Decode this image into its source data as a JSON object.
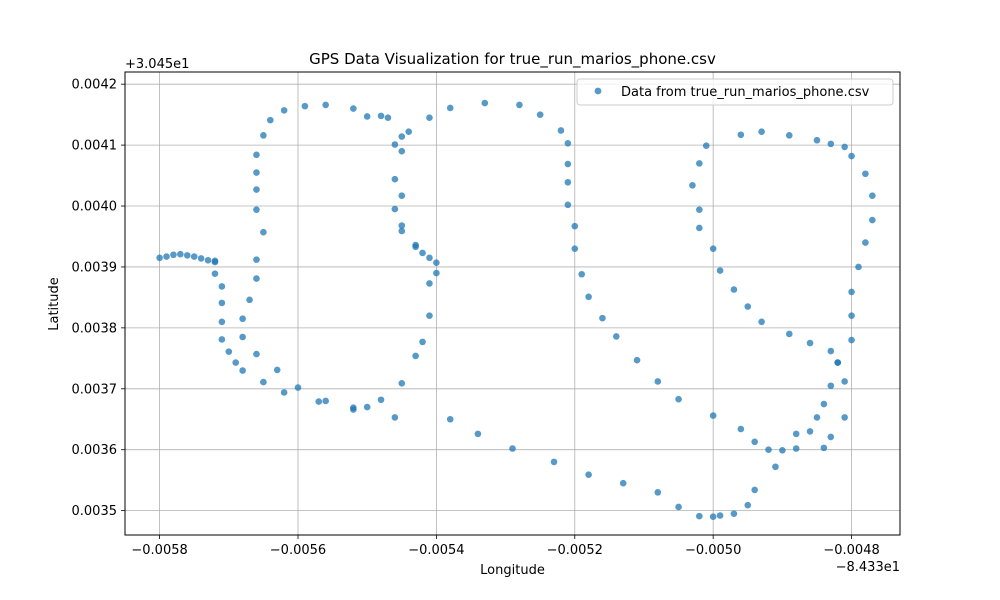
{
  "chart_data": {
    "type": "scatter",
    "title": "GPS Data Visualization for true_run_marios_phone.csv",
    "xlabel": "Longitude",
    "ylabel": "Latitude",
    "x_offset_label": "−8.433e1",
    "y_offset_label": "+3.045e1",
    "xlim": [
      -0.00585,
      -0.00473
    ],
    "ylim": [
      0.00346,
      0.00422
    ],
    "x_ticks": [
      {
        "value": -0.0058,
        "label": "−0.0058"
      },
      {
        "value": -0.0056,
        "label": "−0.0056"
      },
      {
        "value": -0.0054,
        "label": "−0.0054"
      },
      {
        "value": -0.0052,
        "label": "−0.0052"
      },
      {
        "value": -0.005,
        "label": "−0.0050"
      },
      {
        "value": -0.0048,
        "label": "−0.0048"
      }
    ],
    "y_ticks": [
      {
        "value": 0.0035,
        "label": "0.0035"
      },
      {
        "value": 0.0036,
        "label": "0.0036"
      },
      {
        "value": 0.0037,
        "label": "0.0037"
      },
      {
        "value": 0.0038,
        "label": "0.0038"
      },
      {
        "value": 0.0039,
        "label": "0.0039"
      },
      {
        "value": 0.004,
        "label": "0.0040"
      },
      {
        "value": 0.0041,
        "label": "0.0041"
      },
      {
        "value": 0.0042,
        "label": "0.0042"
      }
    ],
    "grid": true,
    "legend_position": "top-right",
    "series": [
      {
        "name": "Data from true_run_marios_phone.csv",
        "color": "#1f77b4",
        "points": [
          [
            -0.0058,
            0.003915
          ],
          [
            -0.00579,
            0.003917
          ],
          [
            -0.00578,
            0.00392
          ],
          [
            -0.00577,
            0.003921
          ],
          [
            -0.00576,
            0.003919
          ],
          [
            -0.00575,
            0.003917
          ],
          [
            -0.00574,
            0.003914
          ],
          [
            -0.00573,
            0.003911
          ],
          [
            -0.00572,
            0.00391
          ],
          [
            -0.00572,
            0.003908
          ],
          [
            -0.00572,
            0.003889
          ],
          [
            -0.00571,
            0.003868
          ],
          [
            -0.00571,
            0.003841
          ],
          [
            -0.00571,
            0.00381
          ],
          [
            -0.00571,
            0.003781
          ],
          [
            -0.0057,
            0.003761
          ],
          [
            -0.00569,
            0.003743
          ],
          [
            -0.00568,
            0.00373
          ],
          [
            -0.00568,
            0.003785
          ],
          [
            -0.00568,
            0.003815
          ],
          [
            -0.00567,
            0.003846
          ],
          [
            -0.00566,
            0.003881
          ],
          [
            -0.00566,
            0.003912
          ],
          [
            -0.00565,
            0.003957
          ],
          [
            -0.00566,
            0.003994
          ],
          [
            -0.00566,
            0.004027
          ],
          [
            -0.00566,
            0.004055
          ],
          [
            -0.00566,
            0.004084
          ],
          [
            -0.00565,
            0.004116
          ],
          [
            -0.00564,
            0.004141
          ],
          [
            -0.00562,
            0.004157
          ],
          [
            -0.00559,
            0.004164
          ],
          [
            -0.00556,
            0.004166
          ],
          [
            -0.00552,
            0.00416
          ],
          [
            -0.0055,
            0.004147
          ],
          [
            -0.00548,
            0.004148
          ],
          [
            -0.00547,
            0.004145
          ],
          [
            -0.00545,
            0.004114
          ],
          [
            -0.00544,
            0.004122
          ],
          [
            -0.00541,
            0.004145
          ],
          [
            -0.00546,
            0.004101
          ],
          [
            -0.00545,
            0.00409
          ],
          [
            -0.00546,
            0.004044
          ],
          [
            -0.00545,
            0.004017
          ],
          [
            -0.00546,
            0.003995
          ],
          [
            -0.00545,
            0.003968
          ],
          [
            -0.00545,
            0.003959
          ],
          [
            -0.00543,
            0.003936
          ],
          [
            -0.00543,
            0.003933
          ],
          [
            -0.00542,
            0.003923
          ],
          [
            -0.00541,
            0.003915
          ],
          [
            -0.0054,
            0.003907
          ],
          [
            -0.0054,
            0.00389
          ],
          [
            -0.00541,
            0.003873
          ],
          [
            -0.00541,
            0.00382
          ],
          [
            -0.00542,
            0.003777
          ],
          [
            -0.00543,
            0.003754
          ],
          [
            -0.00545,
            0.003709
          ],
          [
            -0.00546,
            0.003653
          ],
          [
            -0.00548,
            0.003682
          ],
          [
            -0.0055,
            0.00367
          ],
          [
            -0.00552,
            0.003666
          ],
          [
            -0.00552,
            0.003669
          ],
          [
            -0.00556,
            0.00368
          ],
          [
            -0.00557,
            0.003679
          ],
          [
            -0.0056,
            0.003702
          ],
          [
            -0.00562,
            0.003694
          ],
          [
            -0.00563,
            0.003731
          ],
          [
            -0.00565,
            0.003711
          ],
          [
            -0.00566,
            0.003757
          ],
          [
            -0.00538,
            0.004161
          ],
          [
            -0.00533,
            0.004169
          ],
          [
            -0.00528,
            0.004166
          ],
          [
            -0.00525,
            0.00415
          ],
          [
            -0.00522,
            0.004124
          ],
          [
            -0.00521,
            0.004103
          ],
          [
            -0.00521,
            0.004069
          ],
          [
            -0.00521,
            0.004039
          ],
          [
            -0.00521,
            0.004002
          ],
          [
            -0.0052,
            0.003967
          ],
          [
            -0.0052,
            0.00393
          ],
          [
            -0.00519,
            0.003888
          ],
          [
            -0.00518,
            0.003851
          ],
          [
            -0.00516,
            0.003816
          ],
          [
            -0.00514,
            0.003786
          ],
          [
            -0.00511,
            0.003747
          ],
          [
            -0.00508,
            0.003712
          ],
          [
            -0.00505,
            0.003683
          ],
          [
            -0.005,
            0.003656
          ],
          [
            -0.00496,
            0.003634
          ],
          [
            -0.00494,
            0.003613
          ],
          [
            -0.00492,
            0.0036
          ],
          [
            -0.0049,
            0.003599
          ],
          [
            -0.00488,
            0.003602
          ],
          [
            -0.00486,
            0.00363
          ],
          [
            -0.00485,
            0.003653
          ],
          [
            -0.00484,
            0.003675
          ],
          [
            -0.00483,
            0.003705
          ],
          [
            -0.00482,
            0.003743
          ],
          [
            -0.00481,
            0.003712
          ],
          [
            -0.00481,
            0.003653
          ],
          [
            -0.00483,
            0.003621
          ],
          [
            -0.00484,
            0.003603
          ],
          [
            -0.00488,
            0.003626
          ],
          [
            -0.00491,
            0.003572
          ],
          [
            -0.00494,
            0.003534
          ],
          [
            -0.00495,
            0.003509
          ],
          [
            -0.00497,
            0.003495
          ],
          [
            -0.00499,
            0.003492
          ],
          [
            -0.005,
            0.00349
          ],
          [
            -0.00502,
            0.003491
          ],
          [
            -0.00505,
            0.003506
          ],
          [
            -0.00508,
            0.00353
          ],
          [
            -0.00513,
            0.003545
          ],
          [
            -0.00518,
            0.003559
          ],
          [
            -0.00523,
            0.00358
          ],
          [
            -0.00529,
            0.003602
          ],
          [
            -0.00534,
            0.003626
          ],
          [
            -0.00538,
            0.00365
          ],
          [
            -0.005,
            0.00393
          ],
          [
            -0.00501,
            0.004099
          ],
          [
            -0.00502,
            0.00407
          ],
          [
            -0.00503,
            0.004034
          ],
          [
            -0.00502,
            0.003994
          ],
          [
            -0.00502,
            0.003964
          ],
          [
            -0.00499,
            0.003894
          ],
          [
            -0.00497,
            0.003863
          ],
          [
            -0.00495,
            0.003835
          ],
          [
            -0.00493,
            0.00381
          ],
          [
            -0.00489,
            0.00379
          ],
          [
            -0.00486,
            0.003775
          ],
          [
            -0.00483,
            0.003762
          ],
          [
            -0.00482,
            0.003743
          ],
          [
            -0.0048,
            0.00378
          ],
          [
            -0.0048,
            0.00382
          ],
          [
            -0.0048,
            0.003859
          ],
          [
            -0.00479,
            0.0039
          ],
          [
            -0.00478,
            0.00394
          ],
          [
            -0.00477,
            0.003977
          ],
          [
            -0.00477,
            0.004017
          ],
          [
            -0.00478,
            0.004053
          ],
          [
            -0.0048,
            0.004082
          ],
          [
            -0.00481,
            0.004097
          ],
          [
            -0.00483,
            0.004102
          ],
          [
            -0.00485,
            0.004108
          ],
          [
            -0.00489,
            0.004116
          ],
          [
            -0.00493,
            0.004122
          ],
          [
            -0.00496,
            0.004117
          ]
        ]
      }
    ]
  }
}
